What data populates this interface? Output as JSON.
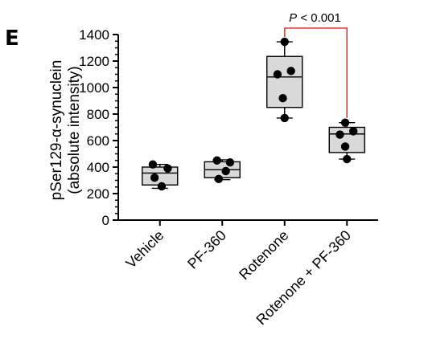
{
  "panel_label": "E",
  "significance_label": "< 0.001",
  "significance_p": "P",
  "colors": {
    "box_fill": "#d9d9d9",
    "box_stroke": "#000000",
    "point": "#000000",
    "bracket": "#e8392a"
  },
  "chart_data": {
    "type": "box",
    "categories": [
      "Vehicle",
      "PF-360",
      "Rotenone",
      "Rotenone + PF-360"
    ],
    "ylabel_line1": "pSer129-α-synuclein",
    "ylabel_line2": "(absolute intensity)",
    "ylim": [
      0,
      1400
    ],
    "yticks": [
      "0",
      "200",
      "400",
      "600",
      "800",
      "1000",
      "1200",
      "1400"
    ],
    "grid": false,
    "boxes": [
      {
        "min": 240,
        "q1": 265,
        "median": 355,
        "q3": 400,
        "max": 420
      },
      {
        "min": 305,
        "q1": 320,
        "median": 380,
        "q3": 440,
        "max": 455
      },
      {
        "min": 770,
        "q1": 850,
        "median": 1080,
        "q3": 1235,
        "max": 1345
      },
      {
        "min": 460,
        "q1": 510,
        "median": 650,
        "q3": 700,
        "max": 735
      }
    ],
    "points": [
      [
        {
          "y": 420,
          "dx": -0.2
        },
        {
          "y": 390,
          "dx": 0.22
        },
        {
          "y": 320,
          "dx": -0.15
        },
        {
          "y": 255,
          "dx": 0.05
        }
      ],
      [
        {
          "y": 450,
          "dx": -0.15
        },
        {
          "y": 435,
          "dx": 0.22
        },
        {
          "y": 370,
          "dx": 0.1
        },
        {
          "y": 310,
          "dx": -0.1
        }
      ],
      [
        {
          "y": 1345,
          "dx": 0.0
        },
        {
          "y": 1125,
          "dx": 0.18
        },
        {
          "y": 1100,
          "dx": -0.2
        },
        {
          "y": 920,
          "dx": -0.05
        },
        {
          "y": 770,
          "dx": 0.0
        }
      ],
      [
        {
          "y": 735,
          "dx": -0.05
        },
        {
          "y": 670,
          "dx": 0.18
        },
        {
          "y": 645,
          "dx": -0.2
        },
        {
          "y": 555,
          "dx": -0.05
        },
        {
          "y": 460,
          "dx": 0.0
        }
      ]
    ],
    "comparison": {
      "from": 2,
      "to": 3
    }
  }
}
